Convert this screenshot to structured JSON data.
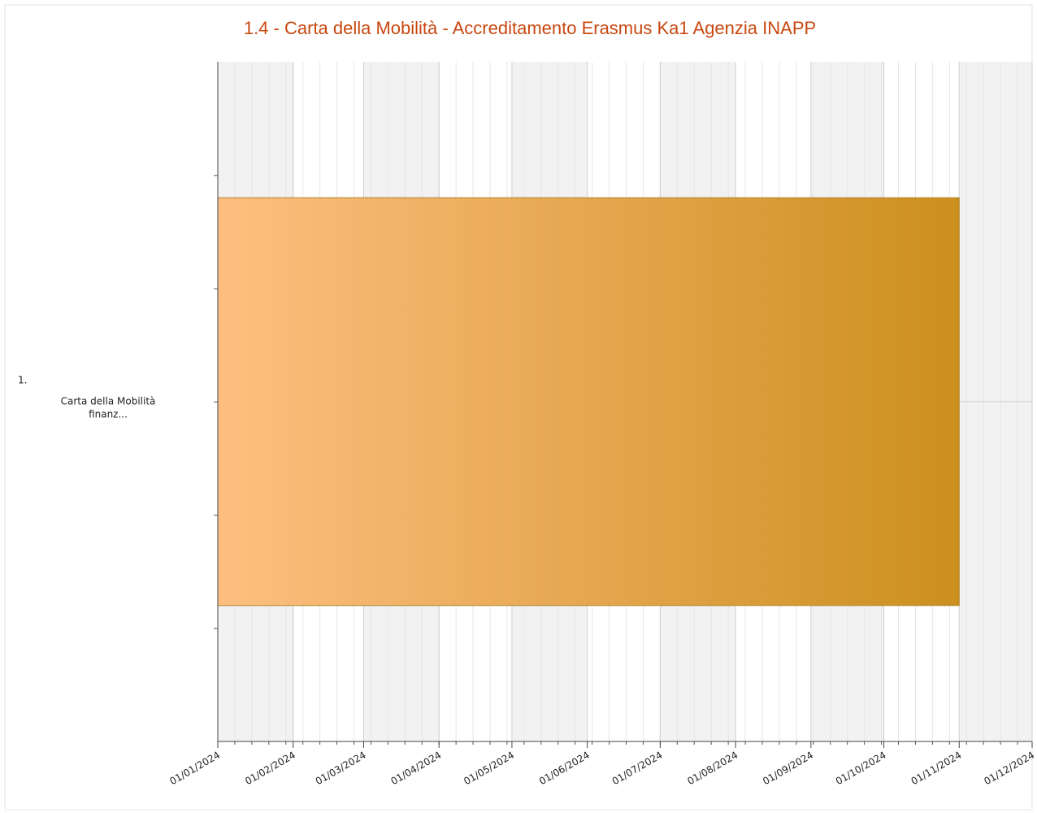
{
  "chart_data": {
    "type": "gantt",
    "title": "1.4 - Carta della Mobilità - Accreditamento Erasmus Ka1 Agenzia INAPP",
    "tasks": [
      {
        "number": "1.",
        "name_lines": [
          "Carta della Mobilità",
          "finanz..."
        ],
        "start": "01/01/2024",
        "end": "01/11/2024"
      }
    ],
    "color_start": "#fdbf80",
    "color_end": "#cc8f1e",
    "xlim": [
      "01/01/2024",
      "01/12/2024"
    ],
    "xticks": [
      "01/01/2024",
      "01/02/2024",
      "01/03/2024",
      "01/04/2024",
      "01/05/2024",
      "01/06/2024",
      "01/07/2024",
      "01/08/2024",
      "01/09/2024",
      "01/10/2024",
      "01/11/2024",
      "01/12/2024"
    ],
    "grid": true
  }
}
